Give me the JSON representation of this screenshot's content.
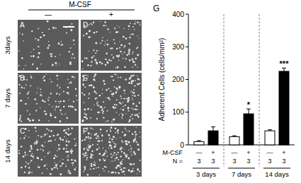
{
  "chart_data": {
    "type": "bar",
    "panel_label": "G",
    "ylabel": "Adherent Cells (cells/mm²)",
    "xlabel": "M-CSF",
    "categories": [
      "—",
      "+",
      "—",
      "+",
      "—",
      "+"
    ],
    "groups": [
      "3 days",
      "7 days",
      "14 days"
    ],
    "values": [
      10,
      43,
      25,
      95,
      43,
      225
    ],
    "errors": [
      3,
      12,
      3,
      15,
      3,
      10
    ],
    "colors": [
      "#ffffff",
      "#000000",
      "#ffffff",
      "#000000",
      "#ffffff",
      "#000000"
    ],
    "significance": [
      null,
      null,
      null,
      "*",
      null,
      "***"
    ],
    "n_label": "N =",
    "n": [
      3,
      3,
      3,
      3,
      3,
      3
    ],
    "ylim": [
      0,
      400
    ],
    "yticks": [
      0,
      100,
      200,
      300,
      400
    ]
  },
  "image_panels": {
    "header": "M-CSF",
    "columns": [
      "—",
      "+"
    ],
    "rows": [
      "3days",
      "7 days",
      "14 days"
    ],
    "labels": [
      [
        "A",
        "D"
      ],
      [
        "B",
        "E"
      ],
      [
        "C",
        "F"
      ]
    ]
  }
}
